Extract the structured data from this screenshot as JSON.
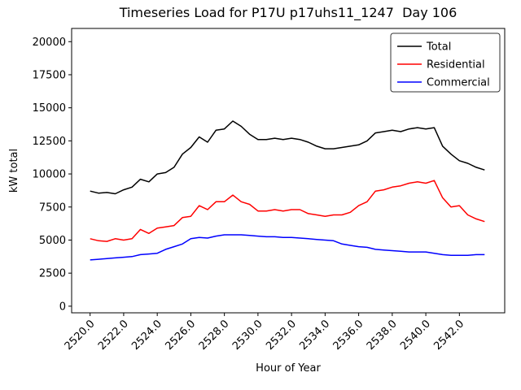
{
  "chart_data": {
    "type": "line",
    "title": "Timeseries Load for P17U p17uhs11_1247  Day 106",
    "xlabel": "Hour of Year",
    "ylabel": "kW total",
    "xlim": [
      2518.9,
      2544.7
    ],
    "ylim": [
      -500,
      21000
    ],
    "grid": false,
    "legend_position": "upper right",
    "xticks": [
      2520,
      2522,
      2524,
      2526,
      2528,
      2530,
      2532,
      2534,
      2536,
      2538,
      2540,
      2542
    ],
    "xtick_labels": [
      "2520.0",
      "2522.0",
      "2524.0",
      "2526.0",
      "2528.0",
      "2530.0",
      "2532.0",
      "2534.0",
      "2536.0",
      "2538.0",
      "2540.0",
      "2542.0"
    ],
    "yticks": [
      0,
      2500,
      5000,
      7500,
      10000,
      12500,
      15000,
      17500,
      20000
    ],
    "ytick_labels": [
      "0",
      "2500",
      "5000",
      "7500",
      "10000",
      "12500",
      "15000",
      "17500",
      "20000"
    ],
    "x": [
      2520.0,
      2520.5,
      2521.0,
      2521.5,
      2522.0,
      2522.5,
      2523.0,
      2523.5,
      2524.0,
      2524.5,
      2525.0,
      2525.5,
      2526.0,
      2526.5,
      2527.0,
      2527.5,
      2528.0,
      2528.5,
      2529.0,
      2529.5,
      2530.0,
      2530.5,
      2531.0,
      2531.5,
      2532.0,
      2532.5,
      2533.0,
      2533.5,
      2534.0,
      2534.5,
      2535.0,
      2535.5,
      2536.0,
      2536.5,
      2537.0,
      2537.5,
      2538.0,
      2538.5,
      2539.0,
      2539.5,
      2540.0,
      2540.5,
      2541.0,
      2541.5,
      2542.0,
      2542.5,
      2543.0,
      2543.5
    ],
    "series": [
      {
        "name": "Total",
        "color": "#000000",
        "values": [
          8700,
          8550,
          8600,
          8500,
          8800,
          9000,
          9600,
          9400,
          10000,
          10100,
          10500,
          11500,
          12000,
          12800,
          12400,
          13300,
          13400,
          14000,
          13600,
          13000,
          12600,
          12600,
          12700,
          12600,
          12700,
          12600,
          12400,
          12100,
          11900,
          11900,
          12000,
          12100,
          12200,
          12500,
          13100,
          13200,
          13300,
          13200,
          13400,
          13500,
          13400,
          13500,
          12100,
          11500,
          11000,
          10800,
          10500,
          10300
        ]
      },
      {
        "name": "Residential",
        "color": "#ff0000",
        "values": [
          5100,
          4950,
          4900,
          5100,
          5000,
          5100,
          5800,
          5500,
          5900,
          6000,
          6100,
          6700,
          6800,
          7600,
          7300,
          7900,
          7900,
          8400,
          7900,
          7700,
          7200,
          7200,
          7300,
          7200,
          7300,
          7300,
          7000,
          6900,
          6800,
          6900,
          6900,
          7100,
          7600,
          7900,
          8700,
          8800,
          9000,
          9100,
          9300,
          9400,
          9300,
          9500,
          8200,
          7500,
          7600,
          6900,
          6600,
          6400
        ]
      },
      {
        "name": "Commercial",
        "color": "#0000ff",
        "values": [
          3500,
          3550,
          3600,
          3650,
          3700,
          3750,
          3900,
          3950,
          4000,
          4300,
          4500,
          4700,
          5100,
          5200,
          5150,
          5300,
          5400,
          5400,
          5400,
          5350,
          5300,
          5250,
          5250,
          5200,
          5200,
          5150,
          5100,
          5050,
          5000,
          4950,
          4700,
          4600,
          4500,
          4450,
          4300,
          4250,
          4200,
          4150,
          4100,
          4100,
          4100,
          4000,
          3900,
          3850,
          3850,
          3850,
          3900,
          3900
        ]
      }
    ]
  }
}
